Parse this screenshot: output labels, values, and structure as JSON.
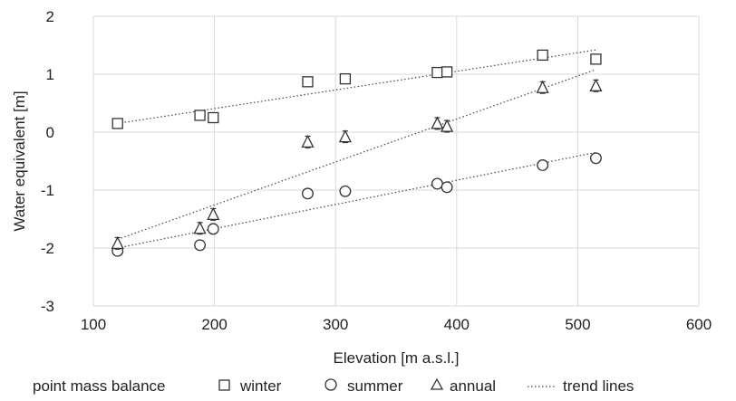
{
  "chart_data": {
    "type": "scatter",
    "xlabel": "Elevation [m a.s.l.]",
    "ylabel": "Water equivalent [m]",
    "xlim": [
      100,
      600
    ],
    "ylim": [
      -3,
      2
    ],
    "xticks": [
      100,
      200,
      300,
      400,
      500,
      600
    ],
    "yticks": [
      -3,
      -2,
      -1,
      0,
      1,
      2
    ],
    "x_tick_labels": [
      "100",
      "200",
      "300",
      "400",
      "500",
      "600"
    ],
    "y_tick_labels": [
      "-3",
      "-2",
      "-1",
      "0",
      "1",
      "2"
    ],
    "grid": true,
    "legend_position": "bottom",
    "legend_title": "point mass balance",
    "series": [
      {
        "name": "winter",
        "marker": "square",
        "points": [
          {
            "x": 120,
            "y": 0.15,
            "err": 0.07
          },
          {
            "x": 188,
            "y": 0.29,
            "err": 0.07
          },
          {
            "x": 199,
            "y": 0.25,
            "err": 0.07
          },
          {
            "x": 277,
            "y": 0.87,
            "err": 0.07
          },
          {
            "x": 308,
            "y": 0.92,
            "err": 0.07
          },
          {
            "x": 384,
            "y": 1.03,
            "err": 0.07
          },
          {
            "x": 392,
            "y": 1.04,
            "err": 0.07
          },
          {
            "x": 471,
            "y": 1.33,
            "err": 0.07
          },
          {
            "x": 515,
            "y": 1.26,
            "err": 0.07
          }
        ],
        "trend": {
          "x": [
            120,
            515
          ],
          "y": [
            0.15,
            1.42
          ]
        }
      },
      {
        "name": "summer",
        "marker": "circle",
        "points": [
          {
            "x": 120,
            "y": -2.05,
            "err": 0.08
          },
          {
            "x": 188,
            "y": -1.95,
            "err": 0.08
          },
          {
            "x": 199,
            "y": -1.67,
            "err": 0.08
          },
          {
            "x": 277,
            "y": -1.06,
            "err": 0.08
          },
          {
            "x": 308,
            "y": -1.02,
            "err": 0.08
          },
          {
            "x": 384,
            "y": -0.89,
            "err": 0.08
          },
          {
            "x": 392,
            "y": -0.95,
            "err": 0.08
          },
          {
            "x": 471,
            "y": -0.57,
            "err": 0.08
          },
          {
            "x": 515,
            "y": -0.45,
            "err": 0.08
          }
        ],
        "trend": {
          "x": [
            120,
            515
          ],
          "y": [
            -2.0,
            -0.35
          ]
        }
      },
      {
        "name": "annual",
        "marker": "triangle",
        "points": [
          {
            "x": 120,
            "y": -1.92,
            "err": 0.1
          },
          {
            "x": 188,
            "y": -1.66,
            "err": 0.1
          },
          {
            "x": 199,
            "y": -1.42,
            "err": 0.1
          },
          {
            "x": 277,
            "y": -0.17,
            "err": 0.1
          },
          {
            "x": 308,
            "y": -0.08,
            "err": 0.1
          },
          {
            "x": 384,
            "y": 0.15,
            "err": 0.1
          },
          {
            "x": 392,
            "y": 0.1,
            "err": 0.1
          },
          {
            "x": 471,
            "y": 0.77,
            "err": 0.1
          },
          {
            "x": 515,
            "y": 0.8,
            "err": 0.1
          }
        ],
        "trend": {
          "x": [
            120,
            515
          ],
          "y": [
            -1.85,
            1.08
          ]
        }
      }
    ],
    "trend_legend_label": "trend lines"
  }
}
